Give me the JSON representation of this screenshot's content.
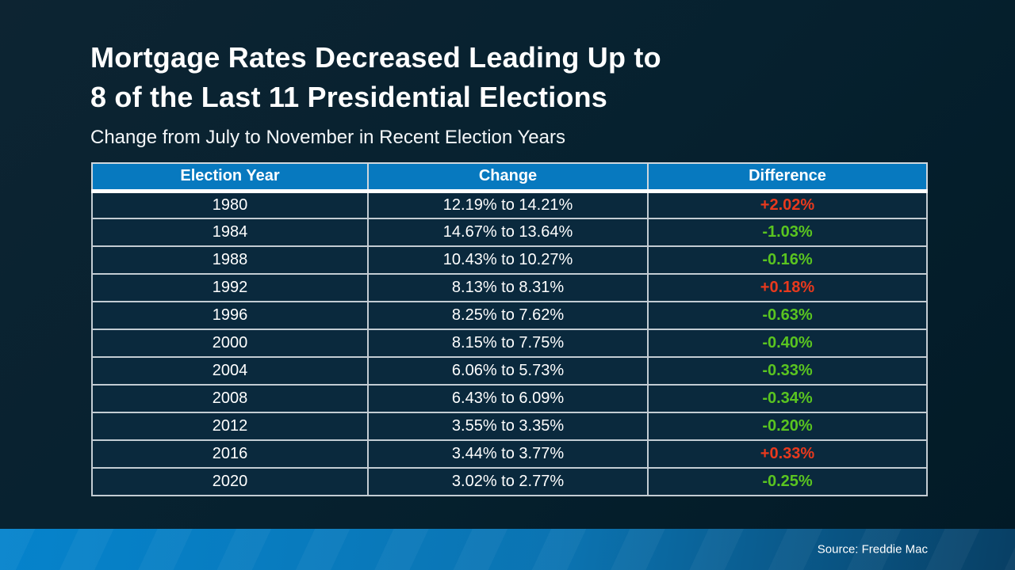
{
  "slide": {
    "title_line1": "Mortgage Rates Decreased Leading Up to",
    "title_line2": "8 of the Last 11 Presidential Elections",
    "subtitle": "Change from July to November in Recent Election Years",
    "source": "Source: Freddie Mac"
  },
  "colors": {
    "page_bg_top": "#0d2432",
    "page_bg_bottom": "#021a26",
    "header_bg": "#0779bf",
    "row_bg": "#0a293d",
    "grid_line": "#c3ccd3",
    "header_underline": "#ffffff",
    "increase": "#e8391d",
    "decrease": "#5ac520",
    "footer_left": "#0583cc",
    "footer_right": "#083f64"
  },
  "chart_data": {
    "type": "table",
    "title": "Mortgage Rates Decreased Leading Up to 8 of the Last 11 Presidential Elections",
    "subtitle": "Change from July to November in Recent Election Years",
    "columns": [
      "Election Year",
      "Change",
      "Difference"
    ],
    "rows": [
      {
        "year": "1980",
        "change": "12.19% to 14.21%",
        "difference": "+2.02%",
        "direction": "increase"
      },
      {
        "year": "1984",
        "change": "14.67% to 13.64%",
        "difference": "-1.03%",
        "direction": "decrease"
      },
      {
        "year": "1988",
        "change": "10.43% to 10.27%",
        "difference": "-0.16%",
        "direction": "decrease"
      },
      {
        "year": "1992",
        "change": "8.13% to 8.31%",
        "difference": "+0.18%",
        "direction": "increase"
      },
      {
        "year": "1996",
        "change": "8.25% to 7.62%",
        "difference": "-0.63%",
        "direction": "decrease"
      },
      {
        "year": "2000",
        "change": "8.15% to 7.75%",
        "difference": "-0.40%",
        "direction": "decrease"
      },
      {
        "year": "2004",
        "change": "6.06% to 5.73%",
        "difference": "-0.33%",
        "direction": "decrease"
      },
      {
        "year": "2008",
        "change": "6.43% to 6.09%",
        "difference": "-0.34%",
        "direction": "decrease"
      },
      {
        "year": "2012",
        "change": "3.55% to 3.35%",
        "difference": "-0.20%",
        "direction": "decrease"
      },
      {
        "year": "2016",
        "change": "3.44% to 3.77%",
        "difference": "+0.33%",
        "direction": "increase"
      },
      {
        "year": "2020",
        "change": "3.02% to 2.77%",
        "difference": "-0.25%",
        "direction": "decrease"
      }
    ]
  }
}
